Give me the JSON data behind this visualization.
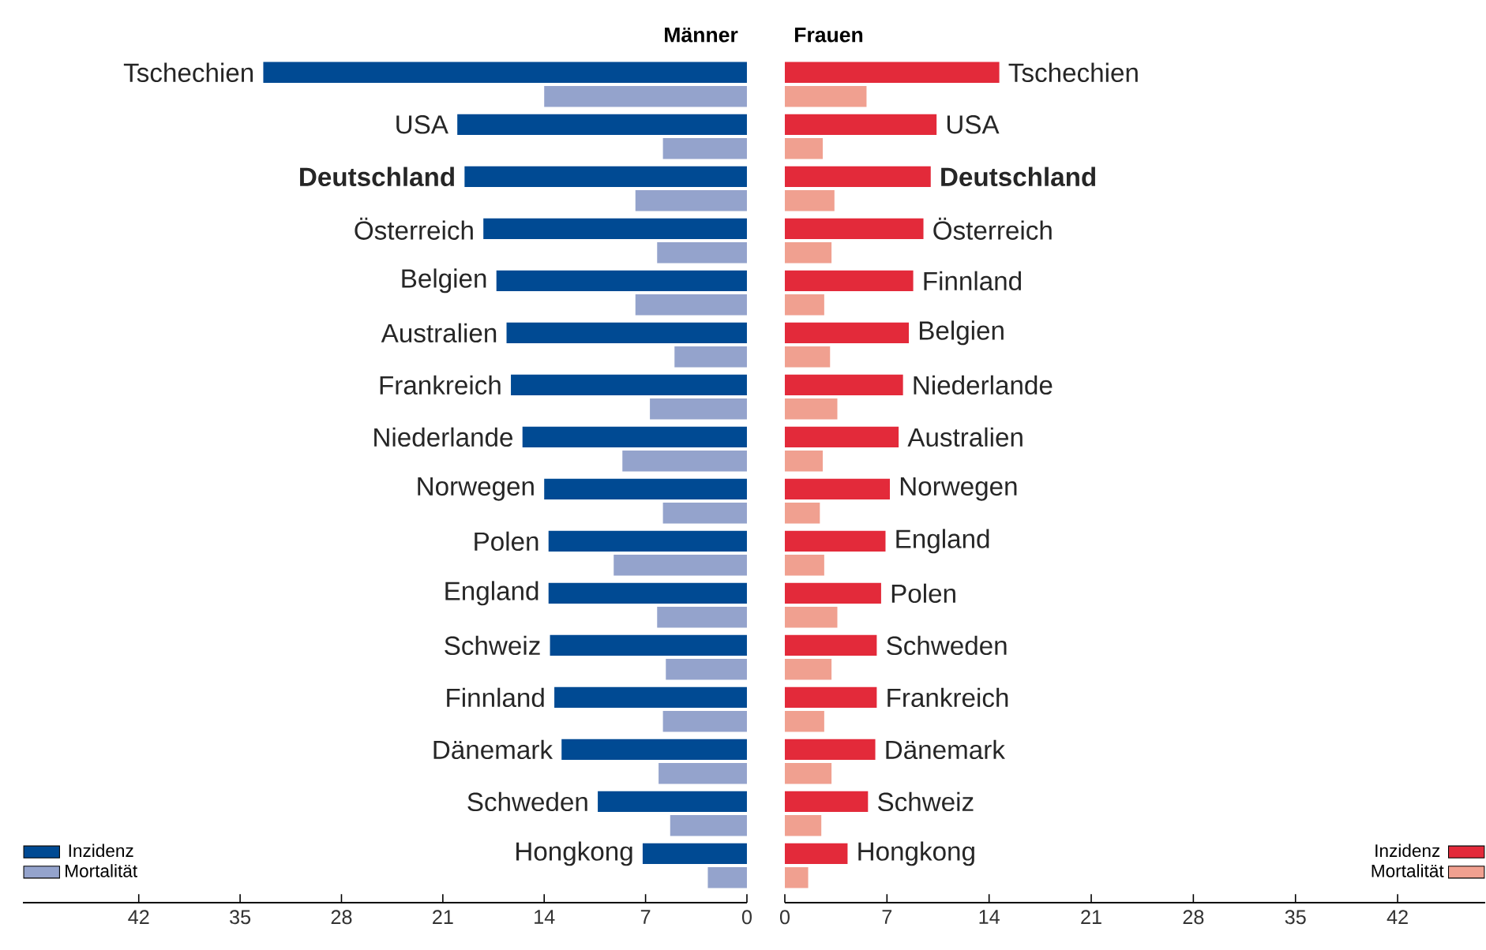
{
  "chart_data": [
    {
      "type": "bar",
      "orientation": "horizontal",
      "title": "Männer",
      "categories": [
        "Tschechien",
        "USA",
        "**Deutschland**",
        "Österreich",
        "Belgien",
        "Australien",
        "Frankreich",
        "Niederlande",
        "Norwegen",
        "Polen",
        "England",
        "Schweiz",
        "Finnland",
        "Dänemark",
        "Schweden",
        "Hongkong"
      ],
      "series": [
        {
          "name": "Inzidenz",
          "color": "#004a93",
          "values": [
            33.4,
            20.0,
            19.5,
            18.2,
            17.3,
            16.6,
            16.3,
            15.5,
            14.0,
            13.7,
            13.7,
            13.6,
            13.3,
            12.8,
            10.3,
            7.2
          ]
        },
        {
          "name": "Mortalität",
          "color": "#94a3cc",
          "values": [
            14.0,
            5.8,
            7.7,
            6.2,
            7.7,
            5.0,
            6.7,
            8.6,
            5.8,
            9.2,
            6.2,
            5.6,
            5.8,
            6.1,
            5.3,
            2.7
          ]
        }
      ],
      "xlim": [
        50,
        0
      ],
      "xticks": [
        42,
        35,
        28,
        21,
        14,
        7,
        0
      ],
      "legend": "bottom left"
    },
    {
      "type": "bar",
      "orientation": "horizontal",
      "title": "Frauen",
      "categories": [
        "Tschechien",
        "USA",
        "**Deutschland**",
        "Österreich",
        "Finnland",
        "Belgien",
        "Niederlande",
        "Australien",
        "Norwegen",
        "England",
        "Polen",
        "Schweden",
        "Frankreich",
        "Dänemark",
        "Schweiz",
        "Hongkong"
      ],
      "series": [
        {
          "name": "Inzidenz",
          "color": "#e32a3a",
          "values": [
            14.7,
            10.4,
            10.0,
            9.5,
            8.8,
            8.5,
            8.1,
            7.8,
            7.2,
            6.9,
            6.6,
            6.3,
            6.3,
            6.2,
            5.7,
            4.3
          ]
        },
        {
          "name": "Mortalität",
          "color": "#f0a090",
          "values": [
            5.6,
            2.6,
            3.4,
            3.2,
            2.7,
            3.1,
            3.6,
            2.6,
            2.4,
            2.7,
            3.6,
            3.2,
            2.7,
            3.2,
            2.5,
            1.6
          ]
        }
      ],
      "xlim": [
        0,
        48
      ],
      "xticks": [
        0,
        7,
        14,
        21,
        28,
        35,
        42
      ],
      "legend": "bottom right"
    }
  ]
}
